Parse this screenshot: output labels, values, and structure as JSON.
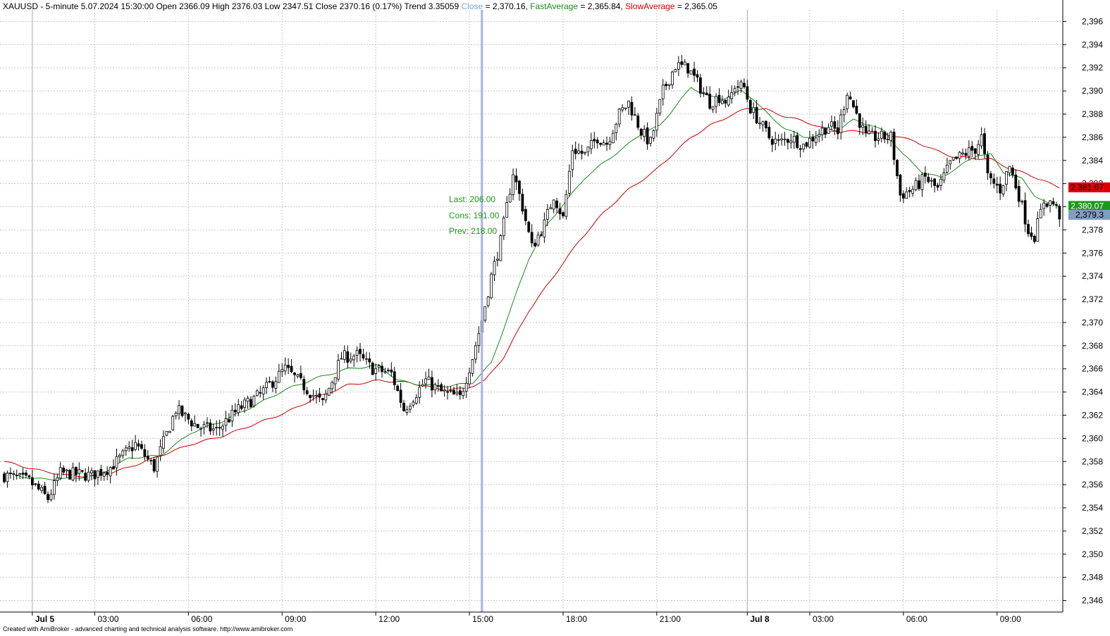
{
  "header": {
    "prefix": "XAUUSD - 5-minute 5.07.2024 15:30:00 Open 2366.09 High 2376.03 Low 2347.51 Close 2370.16 (0.17%) Trend 3.35059 ",
    "close_label": "Close",
    "close_value": " = 2,370.16, ",
    "fast_label": "FastAverage",
    "fast_value": " = 2,365.84, ",
    "slow_label": "SlowAverage",
    "slow_value": " = 2,365.05"
  },
  "annotation": {
    "last": "Last: 206.00",
    "cons": "Cons: 191.00",
    "prev": "Prev: 218.00"
  },
  "footer": "Created with AmiBroker - advanced charting and technical analysis software. http://www.amibroker.com",
  "colors": {
    "close": "#7aa7c7",
    "fast": "#1a8a1a",
    "slow": "#cc0000",
    "candle": "#000000",
    "cursor": "#2222aa",
    "grid": "#c8c8c8",
    "fast_tag": "#1a9a1a",
    "slow_tag": "#dd0000",
    "close_tag": "#7f9fbf"
  },
  "chart_data": {
    "type": "candlestick",
    "symbol": "XAUUSD",
    "interval": "5-minute",
    "ylim": [
      2345,
      2397
    ],
    "y_ticks": [
      "2,396",
      "2,394",
      "2,392",
      "2,390",
      "2,388",
      "2,386",
      "2,384",
      "2,382",
      "2,380",
      "2,378",
      "2,376",
      "2,374",
      "2,372",
      "2,370",
      "2,368",
      "2,366",
      "2,364",
      "2,362",
      "2,360",
      "2,358",
      "2,356",
      "2,354",
      "2,352",
      "2,350",
      "2,348",
      "2,346"
    ],
    "x_labels": [
      {
        "label": "Jul 5",
        "bar": 9,
        "bold": true
      },
      {
        "label": "03:00",
        "bar": 29
      },
      {
        "label": "06:00",
        "bar": 59
      },
      {
        "label": "09:00",
        "bar": 89
      },
      {
        "label": "12:00",
        "bar": 119
      },
      {
        "label": "15:00",
        "bar": 149
      },
      {
        "label": "18:00",
        "bar": 179
      },
      {
        "label": "21:00",
        "bar": 209
      },
      {
        "label": "Jul 8",
        "bar": 238,
        "bold": true
      },
      {
        "label": "03:00",
        "bar": 258
      },
      {
        "label": "06:00",
        "bar": 288
      },
      {
        "label": "09:00",
        "bar": 318
      }
    ],
    "cursor_bar": 153,
    "cursor_low": 2347.51,
    "last_values": {
      "fast": "2,380.07",
      "slow": "2,381.67",
      "close": "2,379.3"
    },
    "series": [
      {
        "name": "FastAverage"
      },
      {
        "name": "SlowAverage"
      }
    ],
    "close_keypoints": [
      [
        0,
        2356.8
      ],
      [
        8,
        2356.3
      ],
      [
        14,
        2354.8
      ],
      [
        18,
        2357
      ],
      [
        28,
        2356.8
      ],
      [
        34,
        2357.5
      ],
      [
        42,
        2359.5
      ],
      [
        48,
        2357.5
      ],
      [
        55,
        2362.5
      ],
      [
        62,
        2361
      ],
      [
        68,
        2360.7
      ],
      [
        75,
        2362.5
      ],
      [
        82,
        2363.8
      ],
      [
        90,
        2366
      ],
      [
        96,
        2364.5
      ],
      [
        102,
        2363
      ],
      [
        108,
        2367
      ],
      [
        113,
        2367.2
      ],
      [
        118,
        2366
      ],
      [
        124,
        2365.6
      ],
      [
        128,
        2362.5
      ],
      [
        135,
        2365
      ],
      [
        140,
        2364
      ],
      [
        146,
        2363.5
      ],
      [
        150,
        2367
      ],
      [
        153,
        2370.2
      ],
      [
        156,
        2374
      ],
      [
        159,
        2377
      ],
      [
        163,
        2383
      ],
      [
        166,
        2380
      ],
      [
        169,
        2376.5
      ],
      [
        173,
        2378.5
      ],
      [
        176,
        2381
      ],
      [
        179,
        2379
      ],
      [
        182,
        2385
      ],
      [
        186,
        2384.5
      ],
      [
        190,
        2386
      ],
      [
        193,
        2385.5
      ],
      [
        197,
        2388
      ],
      [
        200,
        2389
      ],
      [
        204,
        2386.5
      ],
      [
        207,
        2385.5
      ],
      [
        211,
        2390
      ],
      [
        215,
        2392.2
      ],
      [
        219,
        2392
      ],
      [
        222,
        2390.7
      ],
      [
        226,
        2389
      ],
      [
        229,
        2389.5
      ],
      [
        232,
        2389
      ],
      [
        234,
        2390.5
      ],
      [
        237,
        2390.3
      ],
      [
        239,
        2388.5
      ],
      [
        241,
        2387.7
      ],
      [
        245,
        2386
      ],
      [
        248,
        2385.5
      ],
      [
        252,
        2386
      ],
      [
        256,
        2385.3
      ],
      [
        260,
        2386.2
      ],
      [
        264,
        2387
      ],
      [
        267,
        2386.5
      ],
      [
        270,
        2390
      ],
      [
        273,
        2388
      ],
      [
        276,
        2386
      ],
      [
        280,
        2386
      ],
      [
        284,
        2386
      ],
      [
        287,
        2381
      ],
      [
        291,
        2381.5
      ],
      [
        295,
        2382.5
      ],
      [
        299,
        2381.5
      ],
      [
        303,
        2383.7
      ],
      [
        307,
        2384.5
      ],
      [
        311,
        2385
      ],
      [
        313,
        2386
      ],
      [
        315,
        2382.5
      ],
      [
        319,
        2381.5
      ],
      [
        322,
        2383.5
      ],
      [
        325,
        2381
      ],
      [
        328,
        2378
      ],
      [
        330,
        2377.5
      ],
      [
        333,
        2380.5
      ],
      [
        336,
        2380.3
      ],
      [
        338,
        2379.3
      ]
    ],
    "fast_keypoints": [
      [
        0,
        2357
      ],
      [
        10,
        2356.5
      ],
      [
        20,
        2356.5
      ],
      [
        30,
        2356.8
      ],
      [
        40,
        2358.3
      ],
      [
        50,
        2358.5
      ],
      [
        60,
        2360.5
      ],
      [
        70,
        2361.5
      ],
      [
        80,
        2362.8
      ],
      [
        90,
        2364.2
      ],
      [
        100,
        2365.2
      ],
      [
        110,
        2366
      ],
      [
        120,
        2366.3
      ],
      [
        126,
        2365
      ],
      [
        134,
        2364.6
      ],
      [
        142,
        2364.5
      ],
      [
        150,
        2364.8
      ],
      [
        156,
        2366.5
      ],
      [
        162,
        2371
      ],
      [
        168,
        2375.5
      ],
      [
        174,
        2378.5
      ],
      [
        180,
        2380.5
      ],
      [
        186,
        2382.5
      ],
      [
        192,
        2383.8
      ],
      [
        198,
        2385
      ],
      [
        204,
        2386.3
      ],
      [
        210,
        2387
      ],
      [
        216,
        2389
      ],
      [
        220,
        2390.3
      ],
      [
        226,
        2389.5
      ],
      [
        230,
        2389.3
      ],
      [
        236,
        2390
      ],
      [
        240,
        2389.3
      ],
      [
        246,
        2387.6
      ],
      [
        250,
        2386.8
      ],
      [
        256,
        2386
      ],
      [
        262,
        2386.2
      ],
      [
        268,
        2386.8
      ],
      [
        272,
        2387.5
      ],
      [
        278,
        2387
      ],
      [
        282,
        2386.5
      ],
      [
        288,
        2384.5
      ],
      [
        294,
        2383
      ],
      [
        300,
        2382.5
      ],
      [
        306,
        2383.5
      ],
      [
        312,
        2384.5
      ],
      [
        316,
        2384.5
      ],
      [
        320,
        2383
      ],
      [
        326,
        2382.4
      ],
      [
        330,
        2381
      ],
      [
        334,
        2380.3
      ],
      [
        338,
        2380.07
      ]
    ],
    "slow_keypoints": [
      [
        0,
        2358
      ],
      [
        10,
        2357.3
      ],
      [
        20,
        2356.8
      ],
      [
        30,
        2356.7
      ],
      [
        40,
        2357.5
      ],
      [
        50,
        2358.5
      ],
      [
        60,
        2359.5
      ],
      [
        70,
        2360.2
      ],
      [
        80,
        2361.2
      ],
      [
        90,
        2362.2
      ],
      [
        100,
        2363.5
      ],
      [
        110,
        2364.6
      ],
      [
        120,
        2365
      ],
      [
        130,
        2364.8
      ],
      [
        140,
        2364.2
      ],
      [
        148,
        2364.3
      ],
      [
        154,
        2365
      ],
      [
        160,
        2367
      ],
      [
        168,
        2371
      ],
      [
        176,
        2374
      ],
      [
        184,
        2377
      ],
      [
        192,
        2379.5
      ],
      [
        200,
        2381.5
      ],
      [
        208,
        2383
      ],
      [
        214,
        2384.5
      ],
      [
        220,
        2386
      ],
      [
        226,
        2387
      ],
      [
        232,
        2387.8
      ],
      [
        238,
        2388.5
      ],
      [
        244,
        2388.4
      ],
      [
        250,
        2387.8
      ],
      [
        256,
        2387.4
      ],
      [
        262,
        2386.8
      ],
      [
        268,
        2386.5
      ],
      [
        274,
        2386.5
      ],
      [
        280,
        2386.3
      ],
      [
        286,
        2386.1
      ],
      [
        292,
        2385.6
      ],
      [
        298,
        2384.9
      ],
      [
        304,
        2384.3
      ],
      [
        310,
        2384.2
      ],
      [
        316,
        2384.1
      ],
      [
        322,
        2383.3
      ],
      [
        328,
        2382.8
      ],
      [
        334,
        2382.1
      ],
      [
        338,
        2381.67
      ]
    ]
  }
}
